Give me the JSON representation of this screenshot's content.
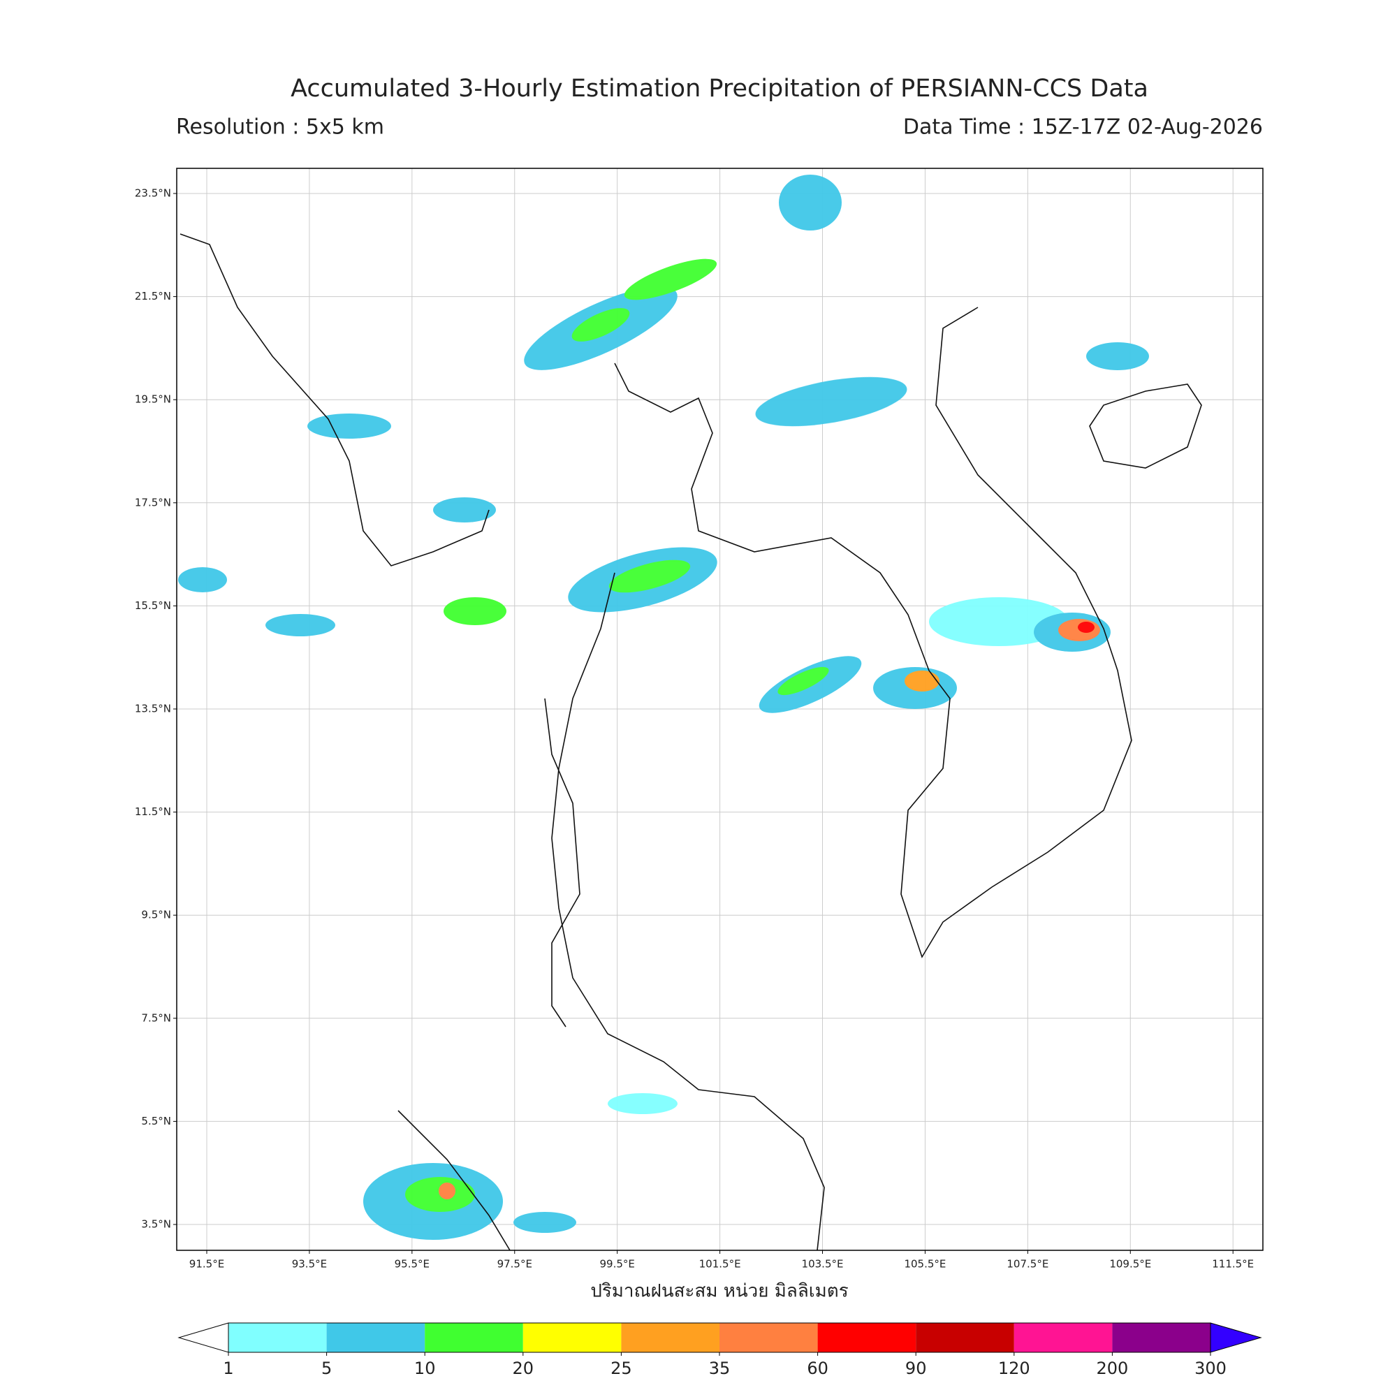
{
  "header": {
    "title": "Accumulated 3-Hourly Estimation Precipitation of PERSIANN-CCS Data",
    "resolution": "Resolution : 5x5 km",
    "data_time": "Data Time : 15Z-17Z 02-Aug-2026"
  },
  "map": {
    "lat_ticks": [
      {
        "value": 23.5,
        "label": "23.5°N"
      },
      {
        "value": 21.5,
        "label": "21.5°N"
      },
      {
        "value": 19.5,
        "label": "19.5°N"
      },
      {
        "value": 17.5,
        "label": "17.5°N"
      },
      {
        "value": 15.5,
        "label": "15.5°N"
      },
      {
        "value": 13.5,
        "label": "13.5°N"
      },
      {
        "value": 11.5,
        "label": "11.5°N"
      },
      {
        "value": 9.5,
        "label": "9.5°N"
      },
      {
        "value": 7.5,
        "label": "7.5°N"
      },
      {
        "value": 5.5,
        "label": "5.5°N"
      },
      {
        "value": 3.5,
        "label": "3.5°N"
      }
    ],
    "lon_ticks": [
      {
        "value": 91.5,
        "label": "91.5°E"
      },
      {
        "value": 93.5,
        "label": "93.5°E"
      },
      {
        "value": 95.5,
        "label": "95.5°E"
      },
      {
        "value": 97.5,
        "label": "97.5°E"
      },
      {
        "value": 99.5,
        "label": "99.5°E"
      },
      {
        "value": 101.5,
        "label": "101.5°E"
      },
      {
        "value": 103.5,
        "label": "103.5°E"
      },
      {
        "value": 105.5,
        "label": "105.5°E"
      },
      {
        "value": 107.5,
        "label": "107.5°E"
      },
      {
        "value": 109.5,
        "label": "109.5°E"
      },
      {
        "value": 111.5,
        "label": "111.5°E"
      }
    ],
    "xlabel": "ปริมาณฝนสะสม หน่วย มิลลิเมตร"
  },
  "colorbar": {
    "levels": [
      1,
      5,
      10,
      20,
      25,
      35,
      60,
      90,
      120,
      200,
      300
    ],
    "colors": [
      "#80ffff",
      "#40c8e8",
      "#40ff30",
      "#ffff00",
      "#ffa020",
      "#ff8040",
      "#ff0000",
      "#c80000",
      "#ff1493",
      "#8b008b"
    ],
    "under_color": "#ffffff",
    "over_color": "#3300ff"
  }
}
